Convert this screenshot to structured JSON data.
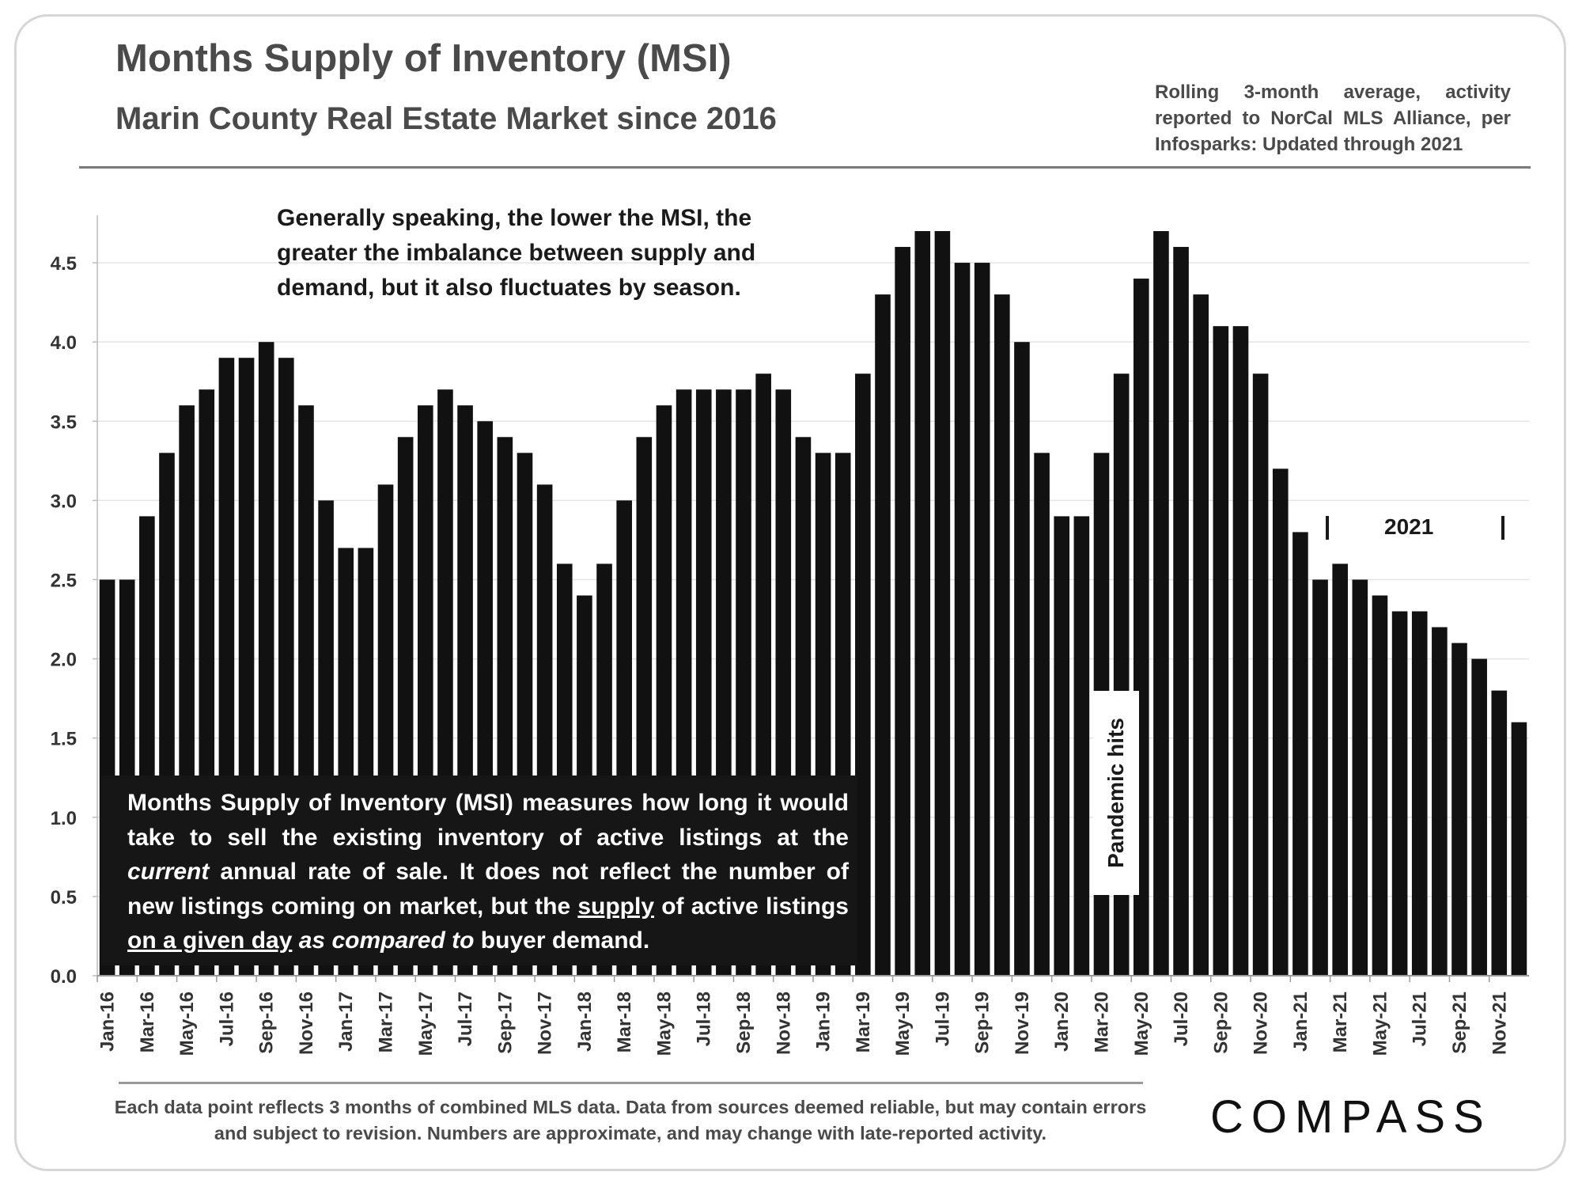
{
  "header": {
    "title": "Months Supply of Inventory (MSI)",
    "subtitle": "Marin County Real Estate Market since 2016",
    "source_note": "Rolling 3-month average, activity reported to NorCal MLS Alliance, per Infosparks: Updated through 2021"
  },
  "annotations": {
    "top_note": "Generally speaking, the lower the MSI, the greater the imbalance between supply and demand, but it also fluctuates by season.",
    "definition": {
      "p1": "Months Supply of Inventory (MSI) measures how long it would take to sell the existing inventory of active listings at the ",
      "current": "current",
      "p2": " annual rate of sale. It does not reflect the number of new listings coming on market, but the ",
      "supply": "supply",
      "p3": " of active listings ",
      "given_day": "on a given day",
      "p4": " ",
      "compared_to": "as compared to",
      "p5": " buyer demand."
    },
    "pandemic": "Pandemic hits",
    "year_2021": "2021"
  },
  "footer": {
    "note": "Each data point reflects 3 months of combined MLS data. Data from sources deemed reliable, but may contain errors and subject to revision. Numbers are approximate, and may change with late-reported activity.",
    "logo": "COMPASS"
  },
  "chart_data": {
    "type": "bar",
    "title": "Months Supply of Inventory (MSI)",
    "xlabel": "",
    "ylabel": "",
    "ylim": [
      0,
      4.8
    ],
    "yticks": [
      "0.0",
      "0.5",
      "1.0",
      "1.5",
      "2.0",
      "2.5",
      "3.0",
      "3.5",
      "4.0",
      "4.5"
    ],
    "grid": true,
    "bar_color": "#111111",
    "categories": [
      "Jan-16",
      "Feb-16",
      "Mar-16",
      "Apr-16",
      "May-16",
      "Jun-16",
      "Jul-16",
      "Aug-16",
      "Sep-16",
      "Oct-16",
      "Nov-16",
      "Dec-16",
      "Jan-17",
      "Feb-17",
      "Mar-17",
      "Apr-17",
      "May-17",
      "Jun-17",
      "Jul-17",
      "Aug-17",
      "Sep-17",
      "Oct-17",
      "Nov-17",
      "Dec-17",
      "Jan-18",
      "Feb-18",
      "Mar-18",
      "Apr-18",
      "May-18",
      "Jun-18",
      "Jul-18",
      "Aug-18",
      "Sep-18",
      "Oct-18",
      "Nov-18",
      "Dec-18",
      "Jan-19",
      "Feb-19",
      "Mar-19",
      "Apr-19",
      "May-19",
      "Jun-19",
      "Jul-19",
      "Aug-19",
      "Sep-19",
      "Oct-19",
      "Nov-19",
      "Dec-19",
      "Jan-20",
      "Feb-20",
      "Mar-20",
      "Apr-20",
      "May-20",
      "Jun-20",
      "Jul-20",
      "Aug-20",
      "Sep-20",
      "Oct-20",
      "Nov-20",
      "Dec-20",
      "Jan-21",
      "Feb-21",
      "Mar-21",
      "Apr-21",
      "May-21",
      "Jun-21",
      "Jul-21",
      "Aug-21",
      "Sep-21",
      "Oct-21",
      "Nov-21",
      "Dec-21"
    ],
    "tick_labels_every": 2,
    "values": [
      2.5,
      2.5,
      2.9,
      3.3,
      3.6,
      3.7,
      3.9,
      3.9,
      4.0,
      3.9,
      3.6,
      3.0,
      2.7,
      2.7,
      3.1,
      3.4,
      3.6,
      3.7,
      3.6,
      3.5,
      3.4,
      3.3,
      3.1,
      2.6,
      2.4,
      2.6,
      3.0,
      3.4,
      3.6,
      3.7,
      3.7,
      3.7,
      3.7,
      3.8,
      3.7,
      3.4,
      3.3,
      3.3,
      3.8,
      4.3,
      4.6,
      4.7,
      4.7,
      4.5,
      4.5,
      4.3,
      4.0,
      3.3,
      2.9,
      2.9,
      3.3,
      3.8,
      4.4,
      4.7,
      4.6,
      4.3,
      4.1,
      4.1,
      3.8,
      3.2,
      2.8,
      2.5,
      2.6,
      2.5,
      2.4,
      2.3,
      2.3,
      2.2,
      2.1,
      2.0,
      1.8,
      1.6
    ]
  }
}
